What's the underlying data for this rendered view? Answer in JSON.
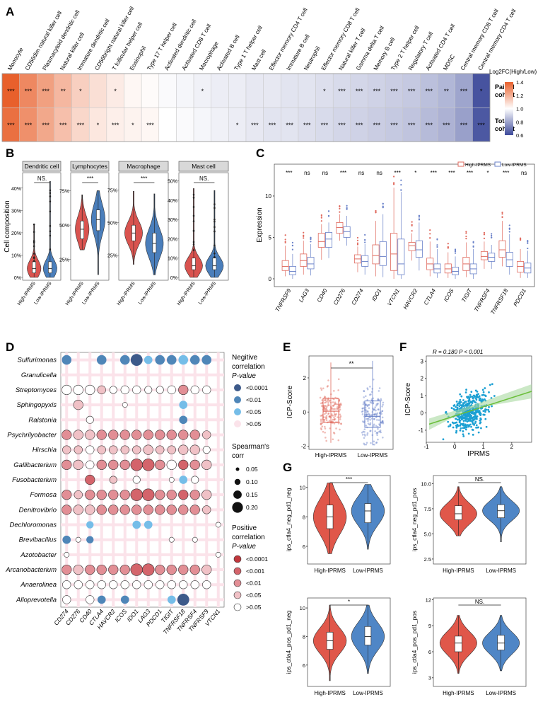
{
  "panels": {
    "A": "A",
    "B": "B",
    "C": "C",
    "D": "D",
    "E": "E",
    "F": "F",
    "G": "G"
  },
  "chart_data": [
    {
      "panel": "A",
      "type": "heatmap",
      "title": "Log2FC(High/Low)",
      "legend_ticks": [
        "1.4",
        "1.2",
        "1.0",
        "0.8",
        "0.6"
      ],
      "legend_range": [
        0.6,
        1.4
      ],
      "rows": [
        "Paired cohort",
        "Total cohort"
      ],
      "columns": [
        "Monocyte",
        "CD56dim natural killer cell",
        "Plasmacytoid dendritic cell",
        "Natural killer cell",
        "Immature dendritic cell",
        "CD56bright natural killer cell",
        "T follicular helper cell",
        "Eosinophil",
        "Type 17 T helper cell",
        "Activated dendritic cell",
        "Activated CD8 T cell",
        "Macrophage",
        "Activated B cell",
        "Type 1 T helper cell",
        "Mast cell",
        "Effector memory CD4 T cell",
        "Immature B cell",
        "Neutrophil",
        "Effector memory CD8 T cell",
        "Natural killer T cell",
        "Gamma delta T cell",
        "Memory B cell",
        "Type 2 T helper cell",
        "Regulatory T cell",
        "Activated CD4 T cell",
        "MDSC",
        "Central memory CD8 T cell",
        "Central memory CD4 T cell"
      ],
      "paired_values": [
        1.4,
        1.3,
        1.24,
        1.18,
        1.12,
        1.08,
        1.05,
        1.02,
        1.01,
        0.99,
        0.98,
        0.97,
        0.96,
        0.96,
        0.95,
        0.95,
        0.94,
        0.94,
        0.93,
        0.92,
        0.91,
        0.9,
        0.89,
        0.88,
        0.86,
        0.84,
        0.8,
        0.62
      ],
      "total_values": [
        1.36,
        1.28,
        1.22,
        1.16,
        1.1,
        1.06,
        1.04,
        1.03,
        1.02,
        1.0,
        0.99,
        0.98,
        0.97,
        0.96,
        0.95,
        0.94,
        0.94,
        0.93,
        0.92,
        0.91,
        0.9,
        0.89,
        0.88,
        0.87,
        0.85,
        0.83,
        0.79,
        0.63
      ],
      "paired_sig": [
        "***",
        "***",
        "***",
        "**",
        "*",
        "",
        "*",
        "",
        "",
        "",
        "",
        "*",
        "",
        "",
        "",
        "",
        "",
        "",
        "*",
        "***",
        "***",
        "***",
        "***",
        "***",
        "***",
        "**",
        "***",
        "*"
      ],
      "total_sig": [
        "***",
        "***",
        "***",
        "***",
        "***",
        "*",
        "***",
        "*",
        "***",
        "",
        "",
        "",
        "",
        "*",
        "***",
        "***",
        "***",
        "***",
        "***",
        "***",
        "***",
        "***",
        "***",
        "***",
        "***",
        "***",
        "***",
        "***"
      ]
    },
    {
      "panel": "B",
      "type": "violin",
      "ylabel": "Cell composition",
      "groups": [
        "High-IPRMS",
        "Low-IPRMS"
      ],
      "colors": {
        "high": "#d9534f",
        "low": "#4a7ebb"
      },
      "facets": [
        {
          "title": "Dendritic cell",
          "sig": "NS.",
          "yticks": [
            "0%",
            "10%",
            "20%",
            "30%",
            "40%"
          ],
          "ylim": [
            0,
            0.45
          ],
          "high": {
            "q1": 0.02,
            "median": 0.04,
            "q3": 0.07,
            "min": 0,
            "max": 0.24
          },
          "low": {
            "q1": 0.02,
            "median": 0.04,
            "q3": 0.07,
            "min": 0,
            "max": 0.43
          }
        },
        {
          "title": "Lymphocytes",
          "sig": "***",
          "yticks": [
            "25%",
            "50%",
            "75%"
          ],
          "ylim": [
            0.12,
            0.85
          ],
          "high": {
            "q1": 0.4,
            "median": 0.47,
            "q3": 0.53,
            "min": 0.32,
            "max": 0.72
          },
          "low": {
            "q1": 0.46,
            "median": 0.54,
            "q3": 0.61,
            "min": 0.14,
            "max": 0.75
          }
        },
        {
          "title": "Macrophage",
          "sig": "***",
          "yticks": [
            "25%",
            "50%",
            "75%"
          ],
          "ylim": [
            0.08,
            0.85
          ],
          "high": {
            "q1": 0.36,
            "median": 0.42,
            "q3": 0.48,
            "min": 0.18,
            "max": 0.74
          },
          "low": {
            "q1": 0.27,
            "median": 0.34,
            "q3": 0.42,
            "min": 0.1,
            "max": 0.72
          }
        },
        {
          "title": "Mast cell",
          "sig": "NS.",
          "yticks": [
            "0%",
            "10%",
            "20%",
            "30%",
            "40%",
            "50%"
          ],
          "ylim": [
            0,
            0.52
          ],
          "high": {
            "q1": 0.04,
            "median": 0.06,
            "q3": 0.1,
            "min": 0,
            "max": 0.46
          },
          "low": {
            "q1": 0.04,
            "median": 0.06,
            "q3": 0.1,
            "min": 0,
            "max": 0.45
          }
        }
      ]
    },
    {
      "panel": "C",
      "type": "box",
      "ylabel": "Expression",
      "legend": [
        "High-IPRMS",
        "Low-IPRMS"
      ],
      "colors": {
        "high": "#e06a5e",
        "low": "#6a82c9"
      },
      "ylim": [
        -0.6,
        13.5
      ],
      "yticks": [
        0,
        5,
        10
      ],
      "genes": [
        "TNFRSF9",
        "LAG3",
        "CD40",
        "CD276",
        "CD274",
        "IDO1",
        "VTCN1",
        "HAVCR2",
        "CTLA4",
        "ICOS",
        "TIGIT",
        "TNFRSF4",
        "TNFRSF18",
        "PDCD1"
      ],
      "sig": [
        "***",
        "ns",
        "ns",
        "***",
        "ns",
        "ns",
        "***",
        "*",
        "***",
        "***",
        "***",
        "*",
        "***",
        "ns"
      ],
      "high": [
        [
          0.3,
          1.0,
          1.5,
          2.2,
          4.0
        ],
        [
          0.5,
          1.5,
          2.2,
          3.0,
          4.6
        ],
        [
          2.3,
          3.8,
          4.5,
          5.5,
          6.6
        ],
        [
          4.6,
          5.5,
          6.2,
          6.8,
          7.8
        ],
        [
          0.8,
          1.9,
          2.4,
          2.9,
          3.9
        ],
        [
          0.3,
          1.8,
          2.8,
          4.1,
          7.0
        ],
        [
          0.0,
          1.0,
          3.0,
          5.5,
          11.0
        ],
        [
          2.2,
          3.4,
          4.0,
          4.4,
          5.5
        ],
        [
          0.3,
          1.1,
          1.8,
          2.5,
          4.5
        ],
        [
          0.1,
          0.7,
          1.2,
          1.8,
          3.2
        ],
        [
          0.2,
          1.0,
          1.8,
          2.6,
          4.4
        ],
        [
          1.2,
          2.3,
          2.7,
          3.3,
          4.5
        ],
        [
          1.5,
          2.6,
          3.5,
          4.6,
          7.0
        ],
        [
          0.1,
          0.8,
          1.5,
          2.1,
          3.6
        ]
      ],
      "low": [
        [
          0.0,
          0.5,
          0.9,
          1.5,
          3.0
        ],
        [
          0.4,
          1.2,
          1.8,
          2.6,
          4.2
        ],
        [
          2.5,
          3.8,
          4.8,
          5.6,
          6.8
        ],
        [
          4.0,
          5.0,
          5.7,
          6.3,
          7.6
        ],
        [
          0.5,
          1.5,
          2.1,
          2.8,
          4.2
        ],
        [
          0.2,
          1.6,
          2.7,
          4.5,
          7.8
        ],
        [
          0.0,
          0.5,
          1.8,
          4.8,
          10.5
        ],
        [
          1.0,
          2.6,
          3.5,
          4.6,
          6.8
        ],
        [
          0.1,
          0.7,
          1.2,
          1.8,
          3.6
        ],
        [
          0.0,
          0.5,
          0.9,
          1.4,
          2.7
        ],
        [
          0.0,
          0.6,
          1.2,
          1.8,
          3.6
        ],
        [
          1.2,
          2.1,
          2.6,
          3.1,
          4.1
        ],
        [
          0.5,
          1.5,
          2.3,
          3.2,
          5.4
        ],
        [
          0.1,
          0.7,
          1.3,
          1.9,
          3.4
        ]
      ]
    },
    {
      "panel": "D",
      "type": "dotplot",
      "genera": [
        "Sulfurimonas",
        "Granulicella",
        "Streptomyces",
        "Sphingopyxis",
        "Ralstonia",
        "Psychrilyobacter",
        "Hirschia",
        "Gallibacterium",
        "Fusobacterium",
        "Formosa",
        "Denitrovibrio",
        "Dechloromonas",
        "Brevibacillus",
        "Azotobacter",
        "Arcanobacterium",
        "Anaerolinea",
        "Alloprevotella"
      ],
      "genes": [
        "CD274",
        "CD276",
        "CD40",
        "CTLA4",
        "HAVCR2",
        "ICOS",
        "IDO1",
        "LAG3",
        "PDCD1",
        "TIGIT",
        "TNFRSF18",
        "TNFRSF4",
        "TNFRSF9",
        "VTCN1"
      ],
      "neg_colors": [
        "#3d5a8a",
        "#4f86b8",
        "#75bde8",
        "#fbe3ea"
      ],
      "pos_colors": [
        "#c1373d",
        "#d4646b",
        "#e28e95",
        "#f0c1c6",
        "#ffffff"
      ],
      "legend_neg_title": "Negitive correlation P-value",
      "legend_neg": [
        "<0.0001",
        "<0.01",
        "<0.05",
        ">0.05"
      ],
      "legend_size_title": "Spearman's corr",
      "legend_size": [
        "0.05",
        "0.10",
        "0.15",
        "0.20"
      ],
      "legend_pos_title": "Positive correlation P-value",
      "legend_pos": [
        "<0.0001",
        "<0.001",
        "<0.01",
        "<0.05",
        ">0.05"
      ],
      "cells": [
        "N1.15 F.05 F.05 N1.15 F.05 N1.15 N0.20 N2.12 N1.15 N1.15 N2.15 N1.15 N1.15 F.05",
        "F.05 F.05 F.05 F.05 F.05 F.05 F.05 F.05 F.05 F.05 F.05 F.05 F.05 F.05",
        "P4.15 P4.15 P4.15 P3.12 P4.10 P4.12 P4.12 P4.10 P4.10 P4.12 P2.15 P4.12 P4.12 F.05",
        "F.05 P3.15 F.05 F.05 F.05 P4.05 F.05 F.05 F.05 F.05 N2.12 F.05 F.05 F.05",
        "F.05 F.05 P4.10 F.05 F.05 F.05 F.05 F.05 F.05 F.05 N1.12 F.05 F.05 F.05",
        "P2.15 P3.15 P3.15 P2.15 P2.15 P2.15 P2.15 P2.15 P2.15 P2.15 P2.15 P2.15 P3.12 F.05",
        "P3.12 P3.12 P4.12 P3.12 P3.12 P3.12 P3.12 P3.15 P3.12 P3.12 P3.15 P3.15 P4.10 F.05",
        "P2.15 P3.15 P4.12 P2.15 P2.15 P2.15 P1.20 P1.20 P2.15 P4.15 P1.15 P2.15 P3.15 F.05",
        "F.05 F.05 P1.15 F.05 P3.10 F.05 P4.10 F.05 F.05 P4.05 N2.12 P4.10 F.05 F.05",
        "P2.15 P3.12 P2.15 P2.15 P2.15 P2.15 P1.20 P1.20 P2.15 P2.15 P1.15 P2.15 P3.15 F.05",
        "P2.15 P3.15 P3.15 P2.15 P2.15 P2.15 P2.15 P2.15 P2.15 P2.15 P2.15 P2.15 P3.12 F.05",
        "F.05 F.05 N2.10 F.05 F.05 F.05 N2.12 N2.12 F.05 F.05 F.05 F.05 F.05 P4.05",
        "N1.12 P4.05 N1.10 F.05 F.05 F.05 F.05 F.05 F.05 P4.05 F.05 P4.05 F.05 F.05",
        "P4.05 F.05 F.05 F.05 F.05 F.05 F.05 F.05 F.05 F.05 F.05 F.05 F.05 P4.05",
        "P2.15 P3.15 P2.15 P2.15 P2.15 P2.15 P1.20 P1.20 P2.15 P2.15 P2.15 P2.15 P3.15 F.05",
        "P4.12 P4.12 P4.12 P4.12 P4.12 P4.12 P4.12 P4.12 P4.12 P4.12 P4.12 P4.12 P4.12 F.05",
        "P4.12 F.05 P4.12 N1.12 F.05 N1.12 F.05 F.05 F.05 N2.12 N0.20 F.05 F.05 F.05"
      ]
    },
    {
      "panel": "E",
      "type": "box",
      "ylabel": "ICP-Score",
      "sig": "**",
      "groups": [
        "High-IPRMS",
        "Low-IPRMS"
      ],
      "yticks": [
        -2,
        0,
        2
      ],
      "ylim": [
        -2.1,
        3.2
      ],
      "high": {
        "min": -1.8,
        "q1": -0.6,
        "median": 0.05,
        "q3": 0.8,
        "max": 2.9
      },
      "low": {
        "min": -1.9,
        "q1": -0.9,
        "median": -0.25,
        "q3": 0.65,
        "max": 3.0
      }
    },
    {
      "panel": "F",
      "type": "scatter",
      "xlabel": "IPRMS",
      "ylabel": "ICP-Score",
      "annotation": "R = 0.180  P < 0.001",
      "xlim": [
        -1,
        2.7
      ],
      "ylim": [
        -1.7,
        3.3
      ],
      "xticks": [
        -1,
        0,
        1,
        2
      ],
      "yticks": [
        -1,
        0,
        1,
        2,
        3
      ],
      "fit": {
        "x": [
          -0.9,
          2.7
        ],
        "y": [
          -0.65,
          1.25
        ]
      }
    },
    {
      "panel": "G",
      "type": "violin",
      "groups": [
        "High-IPRMS",
        "Low-IPRMS"
      ],
      "colors": {
        "high": "#e0574a",
        "low": "#4f86c6"
      },
      "facets": [
        {
          "ylabel": "ips_ctla4_neg_pd1_neg",
          "sig": "***",
          "yticks": [
            6,
            8,
            10
          ],
          "ylim": [
            4.8,
            10.8
          ],
          "high": {
            "min": 5.5,
            "q1": 7.2,
            "median": 8.0,
            "q3": 8.8,
            "max": 10.3
          },
          "low": {
            "min": 5.8,
            "q1": 7.6,
            "median": 8.4,
            "q3": 8.9,
            "max": 10.2
          }
        },
        {
          "ylabel": "ips_ctla4_neg_pd1_pos",
          "sig": "NS.",
          "yticks": [
            2.5,
            5.0,
            7.5,
            10.0
          ],
          "ylim": [
            2.0,
            10.8
          ],
          "high": {
            "min": 4.8,
            "q1": 6.4,
            "median": 7.0,
            "q3": 7.8,
            "max": 9.7
          },
          "low": {
            "min": 4.2,
            "q1": 6.6,
            "median": 7.3,
            "q3": 7.9,
            "max": 9.7
          }
        },
        {
          "ylabel": "ips_ctla4_pos_pd1_neg",
          "sig": "*",
          "yticks": [
            6,
            8,
            10
          ],
          "ylim": [
            4.5,
            10.7
          ],
          "high": {
            "min": 4.9,
            "q1": 7.1,
            "median": 7.7,
            "q3": 8.3,
            "max": 10.2
          },
          "low": {
            "min": 5.4,
            "q1": 7.4,
            "median": 8.0,
            "q3": 8.7,
            "max": 10.2
          }
        },
        {
          "ylabel": "ips_ctla4_pos_pd1_pos",
          "sig": "NS.",
          "yticks": [
            3,
            6,
            9,
            12
          ],
          "ylim": [
            2.0,
            12.2
          ],
          "high": {
            "min": 3.5,
            "q1": 6.0,
            "median": 7.0,
            "q3": 7.8,
            "max": 10.2
          },
          "low": {
            "min": 3.8,
            "q1": 6.2,
            "median": 7.0,
            "q3": 7.9,
            "max": 10.2
          }
        }
      ]
    }
  ]
}
